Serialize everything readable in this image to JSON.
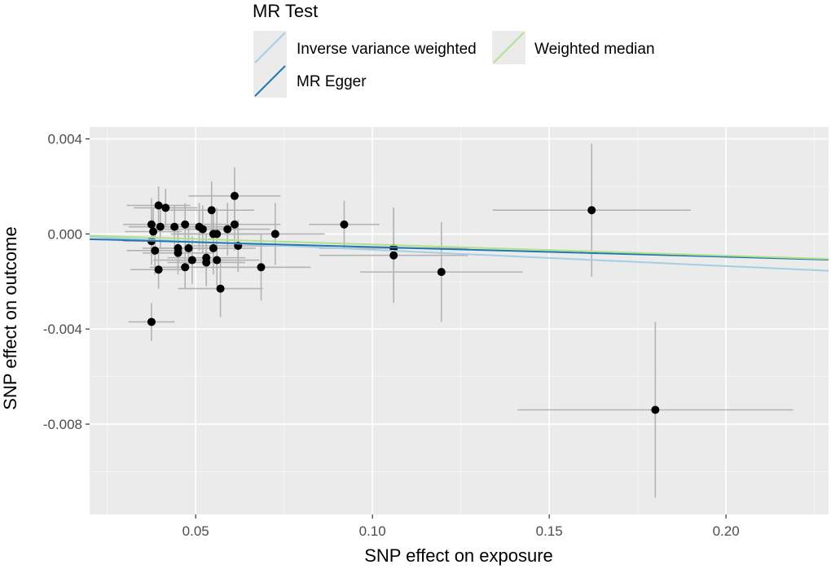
{
  "chart_data": {
    "type": "scatter",
    "xlabel": "SNP effect on exposure",
    "ylabel": "SNP effect on outcome",
    "xlim": [
      0.02,
      0.229
    ],
    "ylim": [
      -0.0118,
      0.0045
    ],
    "x_major_ticks": [
      0.05,
      0.1,
      0.15,
      0.2
    ],
    "x_tick_labels": [
      "0.05",
      "0.10",
      "0.15",
      "0.20"
    ],
    "x_minor_ticks": [
      0.025,
      0.075,
      0.125,
      0.175,
      0.225
    ],
    "y_major_ticks": [
      0.004,
      0.0,
      -0.004,
      -0.008
    ],
    "y_tick_labels": [
      "0.004",
      "0.000",
      "-0.004",
      "-0.008"
    ],
    "y_minor_ticks": [
      0.002,
      -0.002,
      -0.006,
      -0.01
    ],
    "grid": true,
    "legend": {
      "title": "MR Test",
      "position": "top",
      "entries": [
        {
          "label": "Inverse variance weighted",
          "color": "#a6cee3"
        },
        {
          "label": "MR Egger",
          "color": "#1f78b4"
        },
        {
          "label": "Weighted median",
          "color": "#b2df8a"
        }
      ]
    },
    "lines": [
      {
        "name": "Inverse variance weighted",
        "color": "#a6cee3",
        "x": [
          0.02,
          0.229
        ],
        "y": [
          -0.00012,
          -0.00155
        ]
      },
      {
        "name": "MR Egger",
        "color": "#1f78b4",
        "x": [
          0.02,
          0.229
        ],
        "y": [
          -0.00022,
          -0.00108
        ]
      },
      {
        "name": "Weighted median",
        "color": "#b2df8a",
        "x": [
          0.02,
          0.229
        ],
        "y": [
          -7e-05,
          -0.00105
        ]
      }
    ],
    "points": [
      {
        "x": 0.0375,
        "y": 0.0004,
        "xerr": 0.008,
        "yerr": 0.0011
      },
      {
        "x": 0.038,
        "y": 0.0001,
        "xerr": 0.008,
        "yerr": 0.001
      },
      {
        "x": 0.0375,
        "y": -0.0003,
        "xerr": 0.008,
        "yerr": 0.001
      },
      {
        "x": 0.0385,
        "y": -0.0007,
        "xerr": 0.008,
        "yerr": 0.001
      },
      {
        "x": 0.0375,
        "y": -0.0037,
        "xerr": 0.0065,
        "yerr": 0.0008
      },
      {
        "x": 0.0395,
        "y": 0.0012,
        "xerr": 0.009,
        "yerr": 0.0008
      },
      {
        "x": 0.04,
        "y": 0.0003,
        "xerr": 0.009,
        "yerr": 0.0009
      },
      {
        "x": 0.0395,
        "y": -0.0015,
        "xerr": 0.008,
        "yerr": 0.0008
      },
      {
        "x": 0.0415,
        "y": 0.0011,
        "xerr": 0.009,
        "yerr": 0.0008
      },
      {
        "x": 0.044,
        "y": 0.0003,
        "xerr": 0.01,
        "yerr": 0.0009
      },
      {
        "x": 0.045,
        "y": -0.0006,
        "xerr": 0.01,
        "yerr": 0.0009
      },
      {
        "x": 0.045,
        "y": -0.0008,
        "xerr": 0.01,
        "yerr": 0.0009
      },
      {
        "x": 0.047,
        "y": 0.0004,
        "xerr": 0.011,
        "yerr": 0.0009
      },
      {
        "x": 0.047,
        "y": -0.0014,
        "xerr": 0.01,
        "yerr": 0.0009
      },
      {
        "x": 0.048,
        "y": -0.0006,
        "xerr": 0.011,
        "yerr": 0.0009
      },
      {
        "x": 0.049,
        "y": -0.0011,
        "xerr": 0.011,
        "yerr": 0.001
      },
      {
        "x": 0.051,
        "y": 0.0003,
        "xerr": 0.011,
        "yerr": 0.001
      },
      {
        "x": 0.052,
        "y": 0.0002,
        "xerr": 0.011,
        "yerr": 0.001
      },
      {
        "x": 0.053,
        "y": -0.001,
        "xerr": 0.011,
        "yerr": 0.001
      },
      {
        "x": 0.053,
        "y": -0.0012,
        "xerr": 0.011,
        "yerr": 0.001
      },
      {
        "x": 0.0545,
        "y": 0.001,
        "xerr": 0.012,
        "yerr": 0.0012
      },
      {
        "x": 0.055,
        "y": 0.0,
        "xerr": 0.012,
        "yerr": 0.0011
      },
      {
        "x": 0.055,
        "y": -0.0006,
        "xerr": 0.012,
        "yerr": 0.0011
      },
      {
        "x": 0.056,
        "y": 0.0,
        "xerr": 0.012,
        "yerr": 0.0011
      },
      {
        "x": 0.056,
        "y": -0.0011,
        "xerr": 0.012,
        "yerr": 0.0011
      },
      {
        "x": 0.057,
        "y": -0.0023,
        "xerr": 0.012,
        "yerr": 0.0012
      },
      {
        "x": 0.059,
        "y": 0.0002,
        "xerr": 0.012,
        "yerr": 0.0011
      },
      {
        "x": 0.061,
        "y": 0.0016,
        "xerr": 0.013,
        "yerr": 0.0012
      },
      {
        "x": 0.061,
        "y": 0.0004,
        "xerr": 0.013,
        "yerr": 0.0011
      },
      {
        "x": 0.062,
        "y": -0.0005,
        "xerr": 0.013,
        "yerr": 0.0011
      },
      {
        "x": 0.0685,
        "y": -0.0014,
        "xerr": 0.014,
        "yerr": 0.0014
      },
      {
        "x": 0.0725,
        "y": 0.0,
        "xerr": 0.014,
        "yerr": 0.0013
      },
      {
        "x": 0.092,
        "y": 0.0004,
        "xerr": 0.01,
        "yerr": 0.001
      },
      {
        "x": 0.106,
        "y": -0.0006,
        "xerr": 0.021,
        "yerr": 0.0017
      },
      {
        "x": 0.106,
        "y": -0.0009,
        "xerr": 0.021,
        "yerr": 0.002
      },
      {
        "x": 0.1195,
        "y": -0.0016,
        "xerr": 0.023,
        "yerr": 0.0021
      },
      {
        "x": 0.162,
        "y": 0.001,
        "xerr": 0.028,
        "yerr": 0.0028
      },
      {
        "x": 0.18,
        "y": -0.0074,
        "xerr": 0.039,
        "yerr": 0.0037
      }
    ]
  }
}
